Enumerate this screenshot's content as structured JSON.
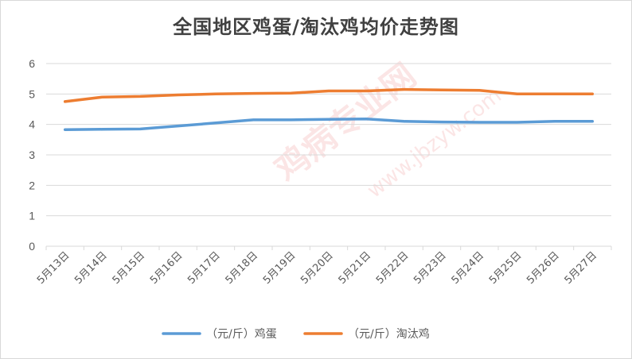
{
  "chart_data": {
    "type": "line",
    "title": "全国地区鸡蛋/淘汰鸡均价走势图",
    "categories": [
      "5月13日",
      "5月14日",
      "5月15日",
      "5月16日",
      "5月17日",
      "5月18日",
      "5月19日",
      "5月20日",
      "5月21日",
      "5月22日",
      "5月23日",
      "5月24日",
      "5月25日",
      "5月26日",
      "5月27日"
    ],
    "series": [
      {
        "name": "（元/斤）鸡蛋",
        "color": "#5b9bd5",
        "values": [
          3.83,
          3.84,
          3.85,
          3.95,
          4.05,
          4.15,
          4.15,
          4.17,
          4.18,
          4.1,
          4.08,
          4.07,
          4.07,
          4.1,
          4.1
        ]
      },
      {
        "name": "（元/斤）淘汰鸡",
        "color": "#ed7d31",
        "values": [
          4.75,
          4.9,
          4.92,
          4.97,
          5.0,
          5.02,
          5.03,
          5.1,
          5.1,
          5.15,
          5.13,
          5.12,
          5.0,
          5.0,
          5.0
        ]
      }
    ],
    "yticks": [
      "0",
      "1",
      "2",
      "3",
      "4",
      "5",
      "6"
    ],
    "ylim": [
      0,
      6
    ],
    "grid": true,
    "legend_position": "bottom",
    "xlabel": "",
    "ylabel": ""
  }
}
